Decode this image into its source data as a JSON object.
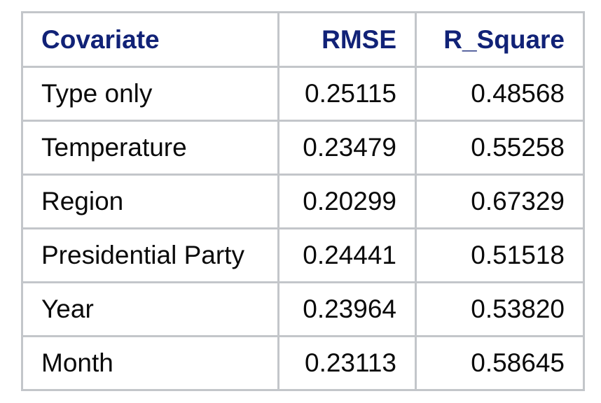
{
  "table": {
    "headers": {
      "covariate": "Covariate",
      "rmse": "RMSE",
      "r_square": "R_Square"
    },
    "rows": [
      {
        "covariate": "Type only",
        "rmse": "0.25115",
        "r_square": "0.48568"
      },
      {
        "covariate": "Temperature",
        "rmse": "0.23479",
        "r_square": "0.55258"
      },
      {
        "covariate": "Region",
        "rmse": "0.20299",
        "r_square": "0.67329"
      },
      {
        "covariate": "Presidential Party",
        "rmse": "0.24441",
        "r_square": "0.51518"
      },
      {
        "covariate": "Year",
        "rmse": "0.23964",
        "r_square": "0.53820"
      },
      {
        "covariate": "Month",
        "rmse": "0.23113",
        "r_square": "0.58645"
      }
    ],
    "colors": {
      "header_text": "#112277",
      "border": "#c3c6ca",
      "body_text": "#0a0a0a"
    }
  }
}
